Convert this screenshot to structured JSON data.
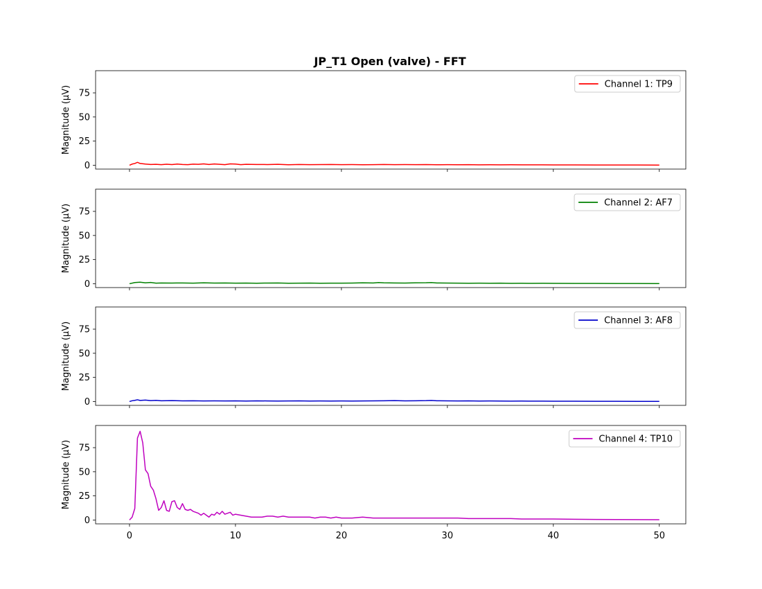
{
  "chart_data": {
    "type": "line",
    "title": "JP_T1 Open (valve) - FFT",
    "xlim": [
      -3.2,
      52.5
    ],
    "ylim": [
      -4,
      98
    ],
    "xticks": [
      0,
      10,
      20,
      30,
      40,
      50
    ],
    "yticks": [
      0,
      25,
      50,
      75
    ],
    "sharex": true,
    "grid": false,
    "legend_position": "upper right",
    "panels": [
      {
        "ylabel": "Magnitude (μV)",
        "series": [
          {
            "name": "Channel 1: TP9",
            "color": "#ff0000",
            "x": [
              0,
              0.25,
              0.5,
              0.75,
              1,
              1.5,
              2,
              2.5,
              3,
              3.5,
              4,
              4.5,
              5,
              5.5,
              6,
              6.5,
              7,
              7.5,
              8,
              8.5,
              9,
              9.5,
              10,
              10.5,
              11,
              12,
              13,
              14,
              15,
              16,
              17,
              18,
              19,
              20,
              21,
              22,
              23,
              24,
              25,
              26,
              27,
              28,
              29,
              30,
              31,
              32,
              33,
              34,
              35,
              36,
              37,
              38,
              39,
              40,
              42,
              44,
              46,
              48,
              50
            ],
            "y": [
              0,
              1.2,
              1.8,
              3,
              1.8,
              1.2,
              0.8,
              0.9,
              0.6,
              1,
              0.7,
              1.2,
              0.8,
              0.6,
              1.1,
              0.9,
              1.4,
              0.8,
              1.3,
              0.9,
              0.6,
              1.4,
              1.2,
              0.6,
              0.9,
              0.8,
              0.7,
              0.9,
              0.5,
              0.8,
              0.6,
              0.7,
              0.8,
              0.6,
              0.7,
              0.5,
              0.6,
              0.8,
              0.6,
              0.7,
              0.6,
              0.7,
              0.5,
              0.6,
              0.5,
              0.6,
              0.4,
              0.5,
              0.4,
              0.5,
              0.4,
              0.4,
              0.4,
              0.3,
              0.3,
              0.2,
              0.2,
              0.2,
              0.1
            ]
          }
        ]
      },
      {
        "ylabel": "Magnitude (μV)",
        "series": [
          {
            "name": "Channel 2: AF7",
            "color": "#008000",
            "x": [
              0,
              0.5,
              1,
              1.5,
              2,
              2.5,
              3,
              4,
              5,
              6,
              7,
              8,
              9,
              10,
              11,
              12,
              13,
              14,
              15,
              16,
              17,
              18,
              19,
              20,
              21,
              22,
              23,
              23.5,
              24,
              25,
              26,
              27,
              28,
              28.5,
              29,
              30,
              31,
              32,
              33,
              34,
              35,
              36,
              37,
              38,
              39,
              40,
              42,
              44,
              46,
              48,
              50
            ],
            "y": [
              0,
              1.2,
              1.6,
              0.9,
              1.3,
              0.6,
              0.8,
              0.7,
              0.8,
              0.6,
              0.9,
              0.7,
              0.8,
              0.6,
              0.7,
              0.5,
              0.7,
              0.8,
              0.5,
              0.6,
              0.7,
              0.5,
              0.6,
              0.6,
              0.7,
              0.9,
              0.8,
              1.2,
              0.9,
              0.8,
              0.7,
              0.9,
              1,
              1.2,
              0.8,
              0.7,
              0.6,
              0.5,
              0.6,
              0.5,
              0.6,
              0.4,
              0.5,
              0.4,
              0.5,
              0.4,
              0.3,
              0.3,
              0.2,
              0.2,
              0.1
            ]
          }
        ]
      },
      {
        "ylabel": "Magnitude (μV)",
        "series": [
          {
            "name": "Channel 3: AF8",
            "color": "#0000cc",
            "x": [
              0,
              0.25,
              0.5,
              0.75,
              1,
              1.5,
              2,
              2.5,
              3,
              4,
              5,
              6,
              7,
              8,
              9,
              10,
              11,
              12,
              13,
              14,
              15,
              16,
              17,
              18,
              19,
              20,
              21,
              22,
              23,
              24,
              25,
              26,
              27,
              28,
              28.5,
              29,
              30,
              31,
              32,
              33,
              34,
              35,
              36,
              37,
              38,
              39,
              40,
              42,
              44,
              46,
              48,
              50
            ],
            "y": [
              0,
              0.8,
              1.2,
              1.8,
              1.1,
              1.5,
              0.9,
              1.2,
              0.8,
              0.9,
              0.7,
              0.8,
              0.6,
              0.7,
              0.6,
              0.7,
              0.5,
              0.7,
              0.6,
              0.5,
              0.6,
              0.7,
              0.5,
              0.6,
              0.5,
              0.6,
              0.5,
              0.6,
              0.7,
              0.8,
              0.9,
              0.7,
              0.8,
              0.9,
              1.1,
              0.8,
              0.7,
              0.6,
              0.7,
              0.5,
              0.6,
              0.5,
              0.4,
              0.5,
              0.4,
              0.4,
              0.3,
              0.3,
              0.2,
              0.2,
              0.1,
              0.1
            ]
          }
        ]
      },
      {
        "ylabel": "Magnitude (μV)",
        "series": [
          {
            "name": "Channel 4: TP10",
            "color": "#bf00bf",
            "x": [
              0,
              0.25,
              0.5,
              0.75,
              1,
              1.25,
              1.5,
              1.75,
              2,
              2.25,
              2.5,
              2.75,
              3,
              3.25,
              3.5,
              3.75,
              4,
              4.25,
              4.5,
              4.75,
              5,
              5.25,
              5.5,
              5.75,
              6,
              6.25,
              6.5,
              6.75,
              7,
              7.25,
              7.5,
              7.75,
              8,
              8.25,
              8.5,
              8.75,
              9,
              9.25,
              9.5,
              9.75,
              10,
              10.5,
              11,
              11.5,
              12,
              12.5,
              13,
              13.5,
              14,
              14.5,
              15,
              15.5,
              16,
              16.5,
              17,
              17.5,
              18,
              18.5,
              19,
              19.5,
              20,
              21,
              22,
              23,
              24,
              25,
              26,
              27,
              28,
              29,
              30,
              31,
              32,
              33,
              34,
              35,
              36,
              37,
              38,
              39,
              40,
              42,
              44,
              46,
              48,
              50
            ],
            "y": [
              0,
              3,
              12,
              85,
              92,
              80,
              52,
              48,
              35,
              31,
              22,
              10,
              13,
              20,
              10,
              9,
              19,
              20,
              13,
              11,
              17,
              11,
              10,
              11,
              9,
              8,
              7,
              5,
              7,
              5,
              3,
              6,
              5,
              8,
              6,
              9,
              6,
              7,
              8,
              5,
              6,
              5,
              4,
              3,
              3,
              3,
              4,
              4,
              3,
              4,
              3,
              3,
              3,
              3,
              3,
              2,
              3,
              3,
              2,
              3,
              2,
              2,
              3,
              2,
              2,
              2,
              2,
              2,
              2,
              2,
              2,
              2,
              1.5,
              1.5,
              1.5,
              1.5,
              1.5,
              1,
              1,
              1,
              1,
              0.8,
              0.6,
              0.5,
              0.4,
              0.3
            ]
          }
        ]
      }
    ]
  }
}
